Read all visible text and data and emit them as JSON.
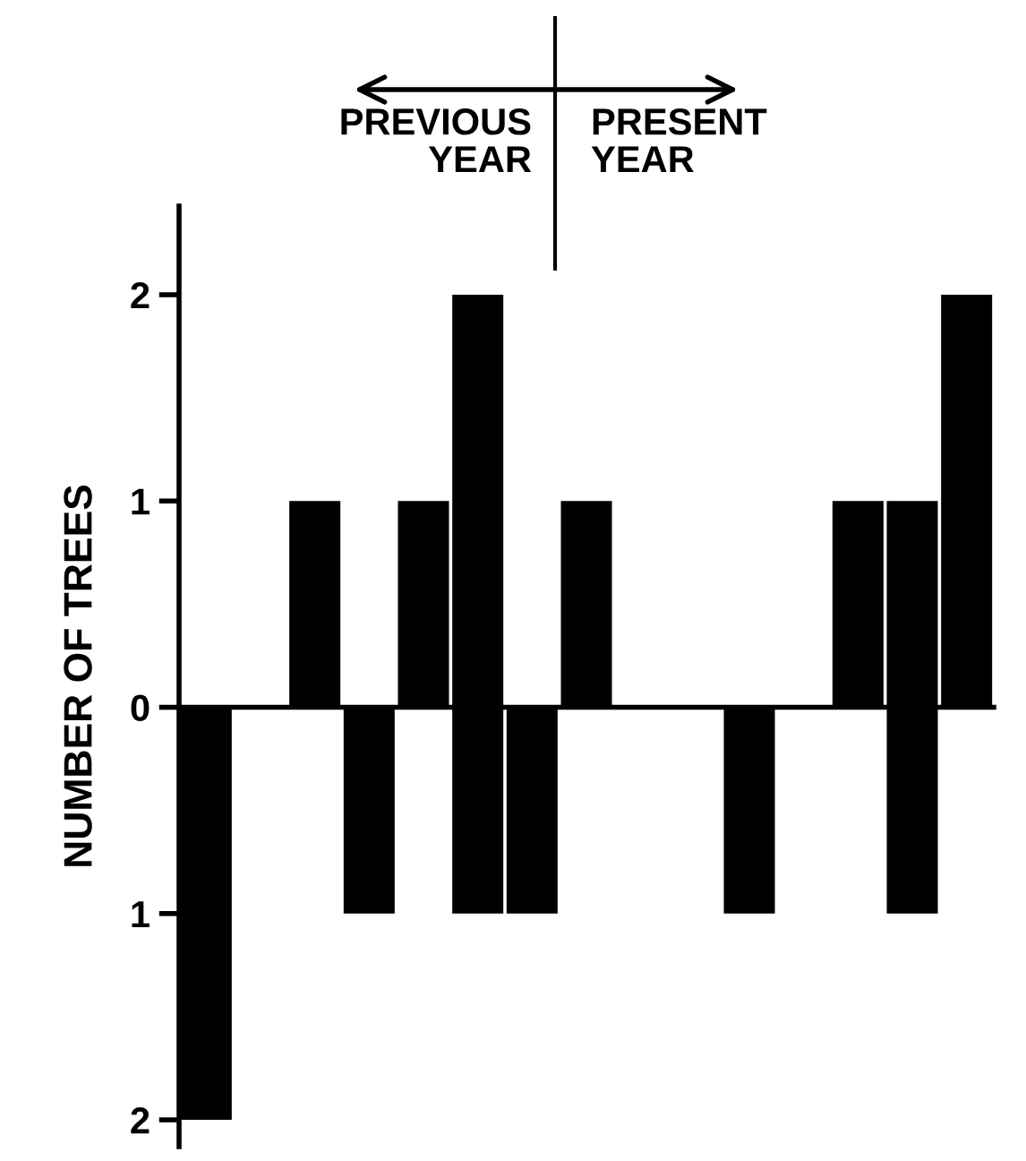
{
  "chart_data": {
    "type": "bar",
    "ylabel": "NUMBER OF TREES",
    "annotations": [
      "PREVIOUS\nYEAR",
      "PRESENT\nYEAR"
    ],
    "categories": [
      null,
      null,
      null,
      null,
      null,
      null,
      null,
      null,
      null,
      null,
      null,
      null,
      null,
      null,
      null
    ],
    "series": [
      {
        "color": "#000000",
        "values": [
          null,
          null,
          1,
          null,
          1,
          2,
          null,
          1,
          null,
          null,
          null,
          null,
          1,
          1,
          2
        ]
      },
      {
        "color": "#000000",
        "values": [
          -2,
          null,
          null,
          -1,
          null,
          -1,
          -1,
          null,
          null,
          null,
          -1,
          null,
          null,
          -1,
          null
        ]
      }
    ],
    "ylim": [
      -2.13,
      2.43
    ],
    "yticks": [
      {
        "value": -2,
        "label": "2"
      },
      {
        "value": -1,
        "label": "1"
      },
      0,
      1,
      2
    ],
    "legend": false
  }
}
